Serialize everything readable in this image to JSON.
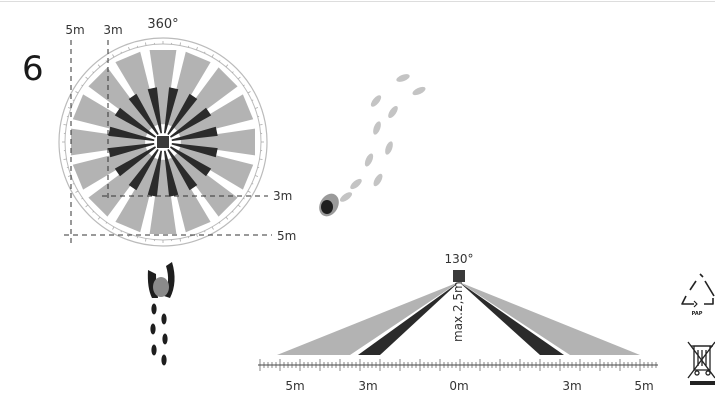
{
  "step_number": "6",
  "top_view": {
    "angle_label": "360°",
    "dist_far_label": "5m",
    "dist_near_label": "3m",
    "side_near_label": "3m",
    "side_far_label": "5m"
  },
  "side_view": {
    "angle_label": "130°",
    "height_label": "max.2,5m",
    "scale_labels": [
      "5m",
      "3m",
      "0m",
      "3m",
      "5m"
    ]
  },
  "symbols": {
    "recycle_icon": "recycle-icon",
    "recycle_code": "PAP",
    "weee_icon": "crossed-bin-icon"
  },
  "colors": {
    "light_zone": "#b3b3b3",
    "dark_zone": "#2b2b2b",
    "sensor": "#3a3a3a",
    "footprint": "#c4c4c4",
    "text": "#333333"
  }
}
